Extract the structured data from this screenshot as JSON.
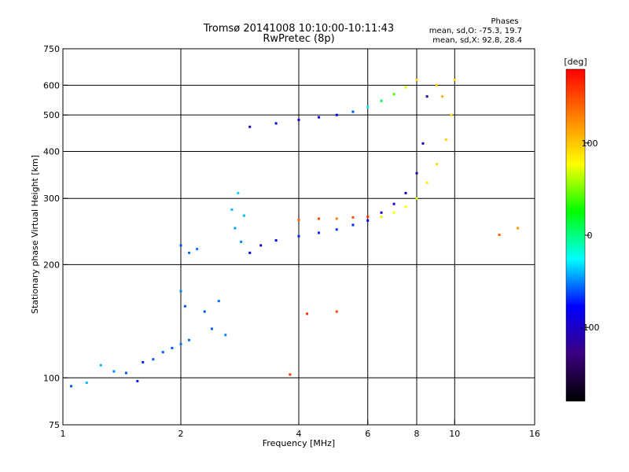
{
  "figure": {
    "title_line1": "Tromsø 20141008 10:10:00-10:11:43",
    "title_line2": "RwPretec (8p)"
  },
  "phases_box": {
    "heading": "Phases",
    "line_o": "mean, sd,O: -75.3, 19.7",
    "line_x": "mean, sd,X:  92.8, 28.4"
  },
  "colorbar": {
    "unit_label": "[deg]",
    "range": [
      -180,
      180
    ],
    "ticks": [
      {
        "label": "100",
        "value": 100
      },
      {
        "label": "0",
        "value": 0
      },
      {
        "label": "-100",
        "value": -100
      }
    ],
    "gradient_colors": [
      "#000000",
      "#3c0080",
      "#0000ff",
      "#00ffff",
      "#00ff00",
      "#ffff00",
      "#ff8000",
      "#ff0000"
    ]
  },
  "chart_data": {
    "type": "scatter",
    "xlabel": "Frequency [MHz]",
    "ylabel": "Stationary phase Virtual Height [km]",
    "x_scale": "log",
    "y_scale": "log",
    "xlim": [
      1,
      16
    ],
    "ylim": [
      75,
      750
    ],
    "x_ticks": [
      {
        "label": "1",
        "value": 1
      },
      {
        "label": "2",
        "value": 2
      },
      {
        "label": "4",
        "value": 4
      },
      {
        "label": "6",
        "value": 6
      },
      {
        "label": "8",
        "value": 8
      },
      {
        "label": "10",
        "value": 10
      },
      {
        "label": "16",
        "value": 16
      }
    ],
    "y_ticks": [
      {
        "label": "750",
        "value": 750
      },
      {
        "label": "600",
        "value": 600
      },
      {
        "label": "500",
        "value": 500
      },
      {
        "label": "400",
        "value": 400
      },
      {
        "label": "300",
        "value": 300
      },
      {
        "label": "200",
        "value": 200
      },
      {
        "label": "100",
        "value": 100
      },
      {
        "label": "75",
        "value": 75
      }
    ],
    "grid_x": [
      2,
      4,
      6,
      8,
      10
    ],
    "grid_y": [
      100,
      200,
      300,
      400,
      500,
      600
    ],
    "series": [
      {
        "color_by": "phase_deg",
        "points": [
          [
            1.05,
            95,
            -60
          ],
          [
            1.15,
            97,
            -40
          ],
          [
            1.25,
            108,
            -40
          ],
          [
            1.35,
            104,
            -50
          ],
          [
            1.45,
            103,
            -60
          ],
          [
            1.55,
            98,
            -70
          ],
          [
            1.6,
            110,
            -70
          ],
          [
            1.7,
            112,
            -60
          ],
          [
            1.8,
            117,
            -60
          ],
          [
            1.9,
            120,
            -60
          ],
          [
            2.0,
            123,
            -55
          ],
          [
            2.1,
            126,
            -55
          ],
          [
            2.0,
            170,
            -50
          ],
          [
            2.05,
            155,
            -60
          ],
          [
            2.0,
            225,
            -60
          ],
          [
            2.1,
            215,
            -55
          ],
          [
            2.2,
            220,
            -55
          ],
          [
            2.3,
            150,
            -60
          ],
          [
            2.4,
            135,
            -60
          ],
          [
            2.5,
            160,
            -55
          ],
          [
            2.6,
            130,
            -50
          ],
          [
            2.7,
            280,
            -40
          ],
          [
            2.75,
            250,
            -45
          ],
          [
            2.8,
            310,
            -35
          ],
          [
            2.85,
            230,
            -50
          ],
          [
            2.9,
            270,
            -40
          ],
          [
            3.0,
            215,
            -90
          ],
          [
            3.2,
            225,
            -100
          ],
          [
            3.5,
            232,
            -85
          ],
          [
            4.0,
            238,
            -70
          ],
          [
            4.5,
            243,
            -70
          ],
          [
            5.0,
            248,
            -65
          ],
          [
            5.5,
            255,
            -70
          ],
          [
            6.0,
            262,
            -80
          ],
          [
            6.5,
            275,
            -95
          ],
          [
            7.0,
            290,
            -95
          ],
          [
            7.5,
            310,
            -100
          ],
          [
            8.0,
            350,
            -110
          ],
          [
            8.3,
            420,
            -110
          ],
          [
            8.5,
            560,
            -110
          ],
          [
            3.0,
            465,
            -110
          ],
          [
            3.5,
            475,
            -90
          ],
          [
            4.0,
            485,
            -90
          ],
          [
            4.5,
            493,
            -80
          ],
          [
            5.0,
            500,
            -80
          ],
          [
            5.5,
            510,
            -60
          ],
          [
            6.0,
            525,
            -30
          ],
          [
            6.5,
            545,
            10
          ],
          [
            7.0,
            568,
            40
          ],
          [
            7.5,
            592,
            70
          ],
          [
            8.0,
            620,
            90
          ],
          [
            4.0,
            263,
            140
          ],
          [
            4.5,
            265,
            150
          ],
          [
            5.0,
            265,
            130
          ],
          [
            5.5,
            267,
            150
          ],
          [
            6.0,
            268,
            160
          ],
          [
            6.5,
            268,
            90
          ],
          [
            7.0,
            275,
            80
          ],
          [
            7.5,
            285,
            80
          ],
          [
            8.0,
            300,
            70
          ],
          [
            8.5,
            330,
            85
          ],
          [
            9.0,
            370,
            95
          ],
          [
            9.5,
            430,
            95
          ],
          [
            9.8,
            500,
            90
          ],
          [
            10.0,
            620,
            90
          ],
          [
            9.0,
            600,
            100
          ],
          [
            9.3,
            560,
            110
          ],
          [
            5.0,
            150,
            150
          ],
          [
            4.2,
            148,
            160
          ],
          [
            3.8,
            102,
            160
          ],
          [
            13.0,
            240,
            140
          ],
          [
            14.5,
            250,
            120
          ]
        ]
      }
    ]
  }
}
